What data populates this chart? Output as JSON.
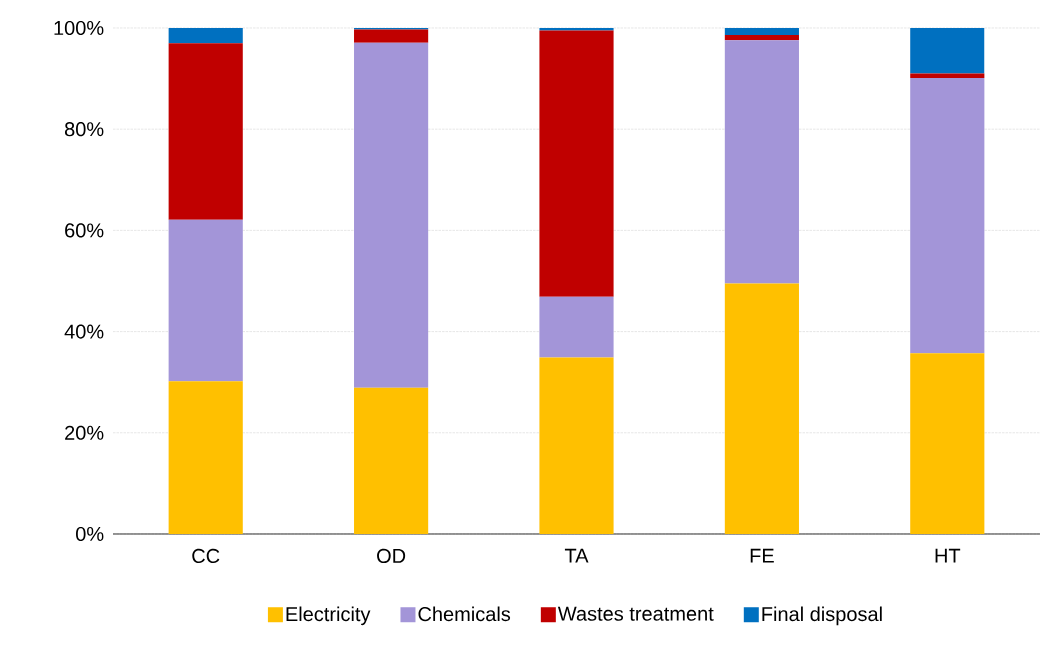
{
  "chart_data": {
    "type": "bar",
    "stacked": true,
    "categories": [
      "CC",
      "OD",
      "TA",
      "FE",
      "HT"
    ],
    "series": [
      {
        "name": "Electricity",
        "color": "#ffc000",
        "values": [
          30.2,
          28.9,
          34.9,
          49.5,
          35.7
        ]
      },
      {
        "name": "Chemicals",
        "color": "#a395d8",
        "values": [
          31.9,
          68.2,
          12.0,
          48.1,
          54.4
        ]
      },
      {
        "name": "Wastes treatment",
        "color": "#c00000",
        "values": [
          34.9,
          2.6,
          52.6,
          1.0,
          0.9
        ]
      },
      {
        "name": "Final disposal",
        "color": "#0070c0",
        "values": [
          3.0,
          0.3,
          0.5,
          1.4,
          9.0
        ]
      }
    ],
    "ylim": [
      0,
      100
    ],
    "yticks": [
      {
        "value": 0,
        "label": "0%"
      },
      {
        "value": 20,
        "label": "20%"
      },
      {
        "value": 40,
        "label": "40%"
      },
      {
        "value": 60,
        "label": "60%"
      },
      {
        "value": 80,
        "label": "80%"
      },
      {
        "value": 100,
        "label": "100%"
      }
    ],
    "grid": "y",
    "legend": "bottom"
  }
}
